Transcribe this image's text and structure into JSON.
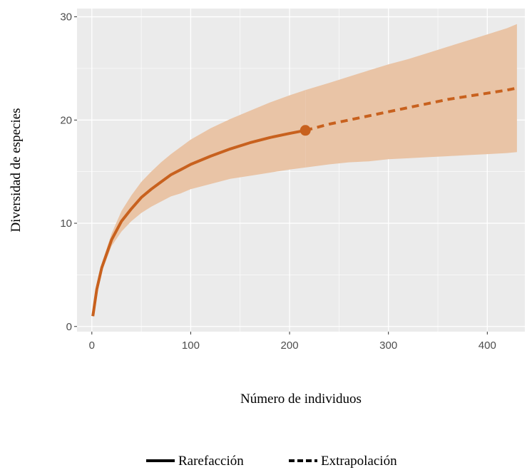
{
  "chart_data": {
    "type": "line",
    "title": "",
    "xlabel": "Número de individuos",
    "ylabel": "Diversidad de especies",
    "xlim": [
      -15,
      438
    ],
    "ylim": [
      -0.5,
      30.8
    ],
    "x_ticks": [
      0,
      100,
      200,
      300,
      400
    ],
    "y_ticks": [
      0,
      10,
      20,
      30
    ],
    "x_tick_labels": [
      "0",
      "100",
      "200",
      "300",
      "400"
    ],
    "y_tick_labels": [
      "0",
      "10",
      "20",
      "30"
    ],
    "grid": true,
    "legend_position": "bottom",
    "colors": {
      "line": "#c8611e",
      "band": "#e9c4a6",
      "panel": "#ebebeb",
      "grid": "#ffffff"
    },
    "observed_point": {
      "x": 216,
      "y": 19
    },
    "series": [
      {
        "name": "Rarefacción",
        "style": "solid",
        "x": [
          1,
          5,
          10,
          20,
          30,
          40,
          50,
          60,
          70,
          80,
          90,
          100,
          120,
          140,
          160,
          180,
          200,
          216
        ],
        "y": [
          1,
          3.6,
          5.7,
          8.4,
          10.2,
          11.4,
          12.5,
          13.3,
          14.0,
          14.7,
          15.2,
          15.7,
          16.5,
          17.2,
          17.8,
          18.3,
          18.7,
          19.0
        ],
        "lower": [
          1,
          3.4,
          5.3,
          7.8,
          9.2,
          10.2,
          11.0,
          11.6,
          12.1,
          12.6,
          12.9,
          13.3,
          13.8,
          14.3,
          14.6,
          14.9,
          15.2,
          15.4
        ],
        "upper": [
          1,
          3.8,
          6.1,
          9.0,
          11.2,
          12.7,
          14.0,
          15.0,
          15.9,
          16.7,
          17.4,
          18.1,
          19.2,
          20.1,
          20.9,
          21.7,
          22.4,
          22.9
        ]
      },
      {
        "name": "Extrapolación",
        "style": "dashed",
        "x": [
          216,
          240,
          260,
          280,
          300,
          320,
          340,
          360,
          380,
          400,
          420,
          430
        ],
        "y": [
          19.0,
          19.6,
          20.0,
          20.4,
          20.8,
          21.2,
          21.6,
          22.0,
          22.3,
          22.6,
          22.9,
          23.1
        ],
        "lower": [
          15.4,
          15.7,
          15.9,
          16.0,
          16.2,
          16.3,
          16.4,
          16.5,
          16.6,
          16.7,
          16.8,
          16.9
        ],
        "upper": [
          22.9,
          23.6,
          24.2,
          24.8,
          25.4,
          25.9,
          26.5,
          27.1,
          27.7,
          28.3,
          28.9,
          29.3
        ]
      }
    ]
  }
}
